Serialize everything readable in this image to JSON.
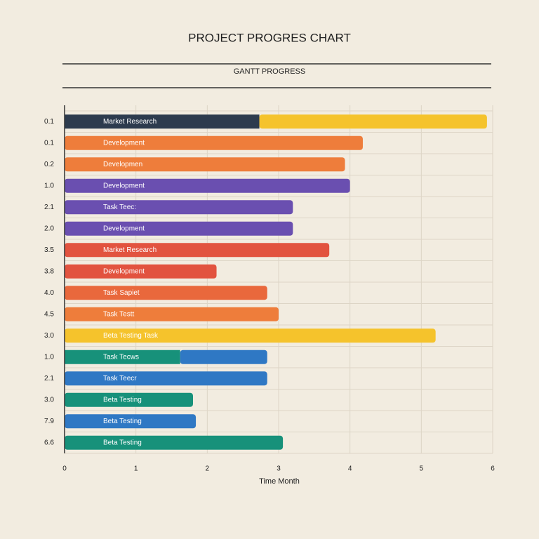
{
  "chart_data": {
    "type": "bar",
    "orientation": "horizontal",
    "stacked": true,
    "title": "PROJECT PROGRES CHART",
    "subtitle": "GANTT PROGRESS",
    "x_label": "Time Month",
    "categories": [
      "0.1",
      "0.1",
      "0.2",
      "1.0",
      "2.1",
      "2.0",
      "3.5",
      "3.8",
      "4.0",
      "4.5",
      "3.0",
      "1.0",
      "2.1",
      "3.0",
      "7.9",
      "6.6"
    ],
    "bars": [
      {
        "label": "Market Research",
        "segments": [
          {
            "value": 2.73,
            "color": "#2d3b4e"
          },
          {
            "value": 3.19,
            "color": "#f5c32c"
          }
        ]
      },
      {
        "label": "Development",
        "segments": [
          {
            "value": 4.18,
            "color": "#ee7d3b"
          }
        ]
      },
      {
        "label": "Developmen",
        "segments": [
          {
            "value": 3.93,
            "color": "#ee7d3b"
          }
        ]
      },
      {
        "label": "Development",
        "segments": [
          {
            "value": 4.0,
            "color": "#6a4fb0"
          }
        ]
      },
      {
        "label": "Task Teec:",
        "segments": [
          {
            "value": 3.2,
            "color": "#6a4fb0"
          }
        ]
      },
      {
        "label": "Development",
        "segments": [
          {
            "value": 3.2,
            "color": "#6a4fb0"
          }
        ]
      },
      {
        "label": "Market Research",
        "segments": [
          {
            "value": 3.71,
            "color": "#e2533f"
          }
        ]
      },
      {
        "label": "Development",
        "segments": [
          {
            "value": 2.13,
            "color": "#e2533f"
          }
        ]
      },
      {
        "label": "Task Sapiet",
        "segments": [
          {
            "value": 2.84,
            "color": "#e9683c"
          }
        ]
      },
      {
        "label": "Task Testt",
        "segments": [
          {
            "value": 3.0,
            "color": "#ee7d3b"
          }
        ]
      },
      {
        "label": "Beta Testing Task",
        "segments": [
          {
            "value": 5.2,
            "color": "#f5c32c"
          }
        ]
      },
      {
        "label": "Task Tecws",
        "segments": [
          {
            "value": 1.62,
            "color": "#17917a"
          },
          {
            "value": 1.22,
            "color": "#2f78c4"
          }
        ]
      },
      {
        "label": "Task Teecr",
        "segments": [
          {
            "value": 2.84,
            "color": "#2f78c4"
          }
        ]
      },
      {
        "label": "Beta Testing",
        "segments": [
          {
            "value": 1.8,
            "color": "#17917a"
          }
        ]
      },
      {
        "label": "Beta Testing",
        "segments": [
          {
            "value": 1.84,
            "color": "#2f78c4"
          }
        ]
      },
      {
        "label": "Beta Testing",
        "segments": [
          {
            "value": 3.06,
            "color": "#17917a"
          }
        ]
      }
    ],
    "xlim": [
      0,
      6
    ],
    "xticks": [
      0,
      1,
      2,
      3,
      4,
      5,
      6
    ],
    "grid": true
  }
}
